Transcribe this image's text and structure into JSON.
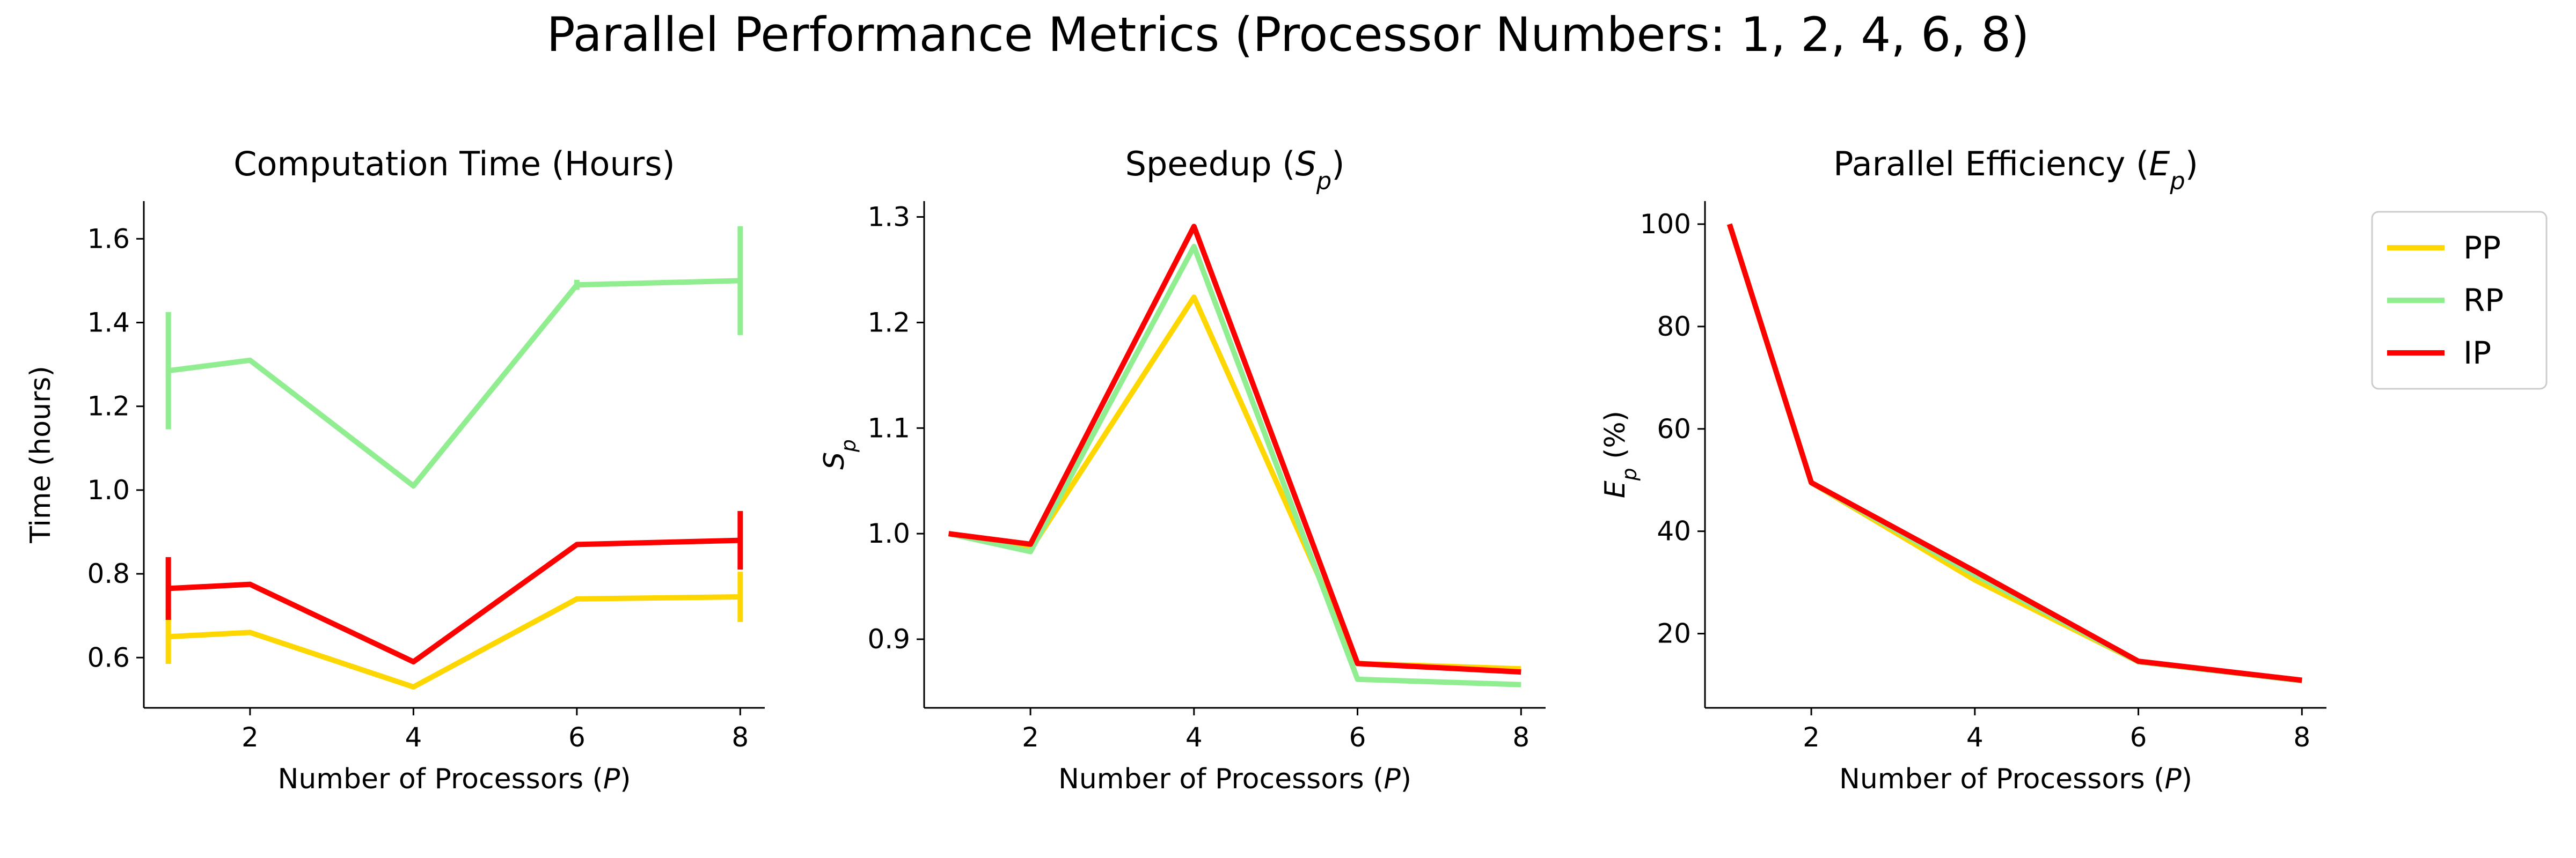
{
  "figure": {
    "title": "Parallel Performance Metrics (Processor Numbers: 1, 2, 4, 6, 8)"
  },
  "legend": {
    "placement": "right",
    "items": [
      {
        "name": "PP",
        "color": "#FFD700"
      },
      {
        "name": "RP",
        "color": "#90EE90"
      },
      {
        "name": "IP",
        "color": "#FF0000"
      }
    ]
  },
  "chart_data": [
    {
      "type": "line",
      "title": "Computation Time (Hours)",
      "xlabel": "Number of Processors (P)",
      "ylabel": "Time (hours)",
      "x": [
        1,
        2,
        4,
        6,
        8
      ],
      "xticks": [
        2,
        4,
        6,
        8
      ],
      "yticks": [
        0.6,
        0.8,
        1.0,
        1.2,
        1.4,
        1.6
      ],
      "xlim": [
        0.7,
        8.3
      ],
      "ylim": [
        0.48,
        1.69
      ],
      "grid": false,
      "series": [
        {
          "name": "PP",
          "color": "#FFD700",
          "values": [
            0.65,
            0.66,
            0.53,
            0.74,
            0.745
          ],
          "errors": [
            {
              "x": 1,
              "err": 0.065
            },
            {
              "x": 8,
              "err": 0.06
            }
          ]
        },
        {
          "name": "RP",
          "color": "#90EE90",
          "values": [
            1.285,
            1.31,
            1.01,
            1.49,
            1.5
          ],
          "errors": [
            {
              "x": 1,
              "err": 0.14
            },
            {
              "x": 6,
              "err": 0.012
            },
            {
              "x": 8,
              "err": 0.13
            }
          ]
        },
        {
          "name": "IP",
          "color": "#FF0000",
          "values": [
            0.765,
            0.775,
            0.59,
            0.87,
            0.88
          ],
          "errors": [
            {
              "x": 1,
              "err": 0.075
            },
            {
              "x": 8,
              "err": 0.07
            }
          ]
        }
      ]
    },
    {
      "type": "line",
      "title": "Speedup (S_p)",
      "xlabel": "Number of Processors (P)",
      "ylabel": "S_p",
      "x": [
        1,
        2,
        4,
        6,
        8
      ],
      "xticks": [
        2,
        4,
        6,
        8
      ],
      "yticks": [
        0.9,
        1.0,
        1.1,
        1.2,
        1.3
      ],
      "xlim": [
        0.7,
        8.3
      ],
      "ylim": [
        0.835,
        1.315
      ],
      "grid": false,
      "series": [
        {
          "name": "PP",
          "color": "#FFD700",
          "values": [
            1.0,
            0.985,
            1.224,
            0.877,
            0.872
          ]
        },
        {
          "name": "RP",
          "color": "#90EE90",
          "values": [
            1.0,
            0.983,
            1.272,
            0.862,
            0.857
          ]
        },
        {
          "name": "IP",
          "color": "#FF0000",
          "values": [
            1.0,
            0.99,
            1.291,
            0.877,
            0.869
          ]
        }
      ]
    },
    {
      "type": "line",
      "title": "Parallel Efficiency (E_p)",
      "xlabel": "Number of Processors (P)",
      "ylabel": "E_p (%)",
      "x": [
        1,
        2,
        4,
        6,
        8
      ],
      "xticks": [
        2,
        4,
        6,
        8
      ],
      "yticks": [
        20,
        40,
        60,
        80,
        100
      ],
      "xlim": [
        0.7,
        8.3
      ],
      "ylim": [
        5.5,
        104.5
      ],
      "grid": false,
      "series": [
        {
          "name": "PP",
          "color": "#FFD700",
          "values": [
            100,
            49.5,
            30.5,
            14.5,
            10.8
          ]
        },
        {
          "name": "RP",
          "color": "#90EE90",
          "values": [
            100,
            49.5,
            31.5,
            14.5,
            10.8
          ]
        },
        {
          "name": "IP",
          "color": "#FF0000",
          "values": [
            100,
            49.5,
            32.2,
            14.6,
            10.9
          ]
        }
      ]
    }
  ]
}
